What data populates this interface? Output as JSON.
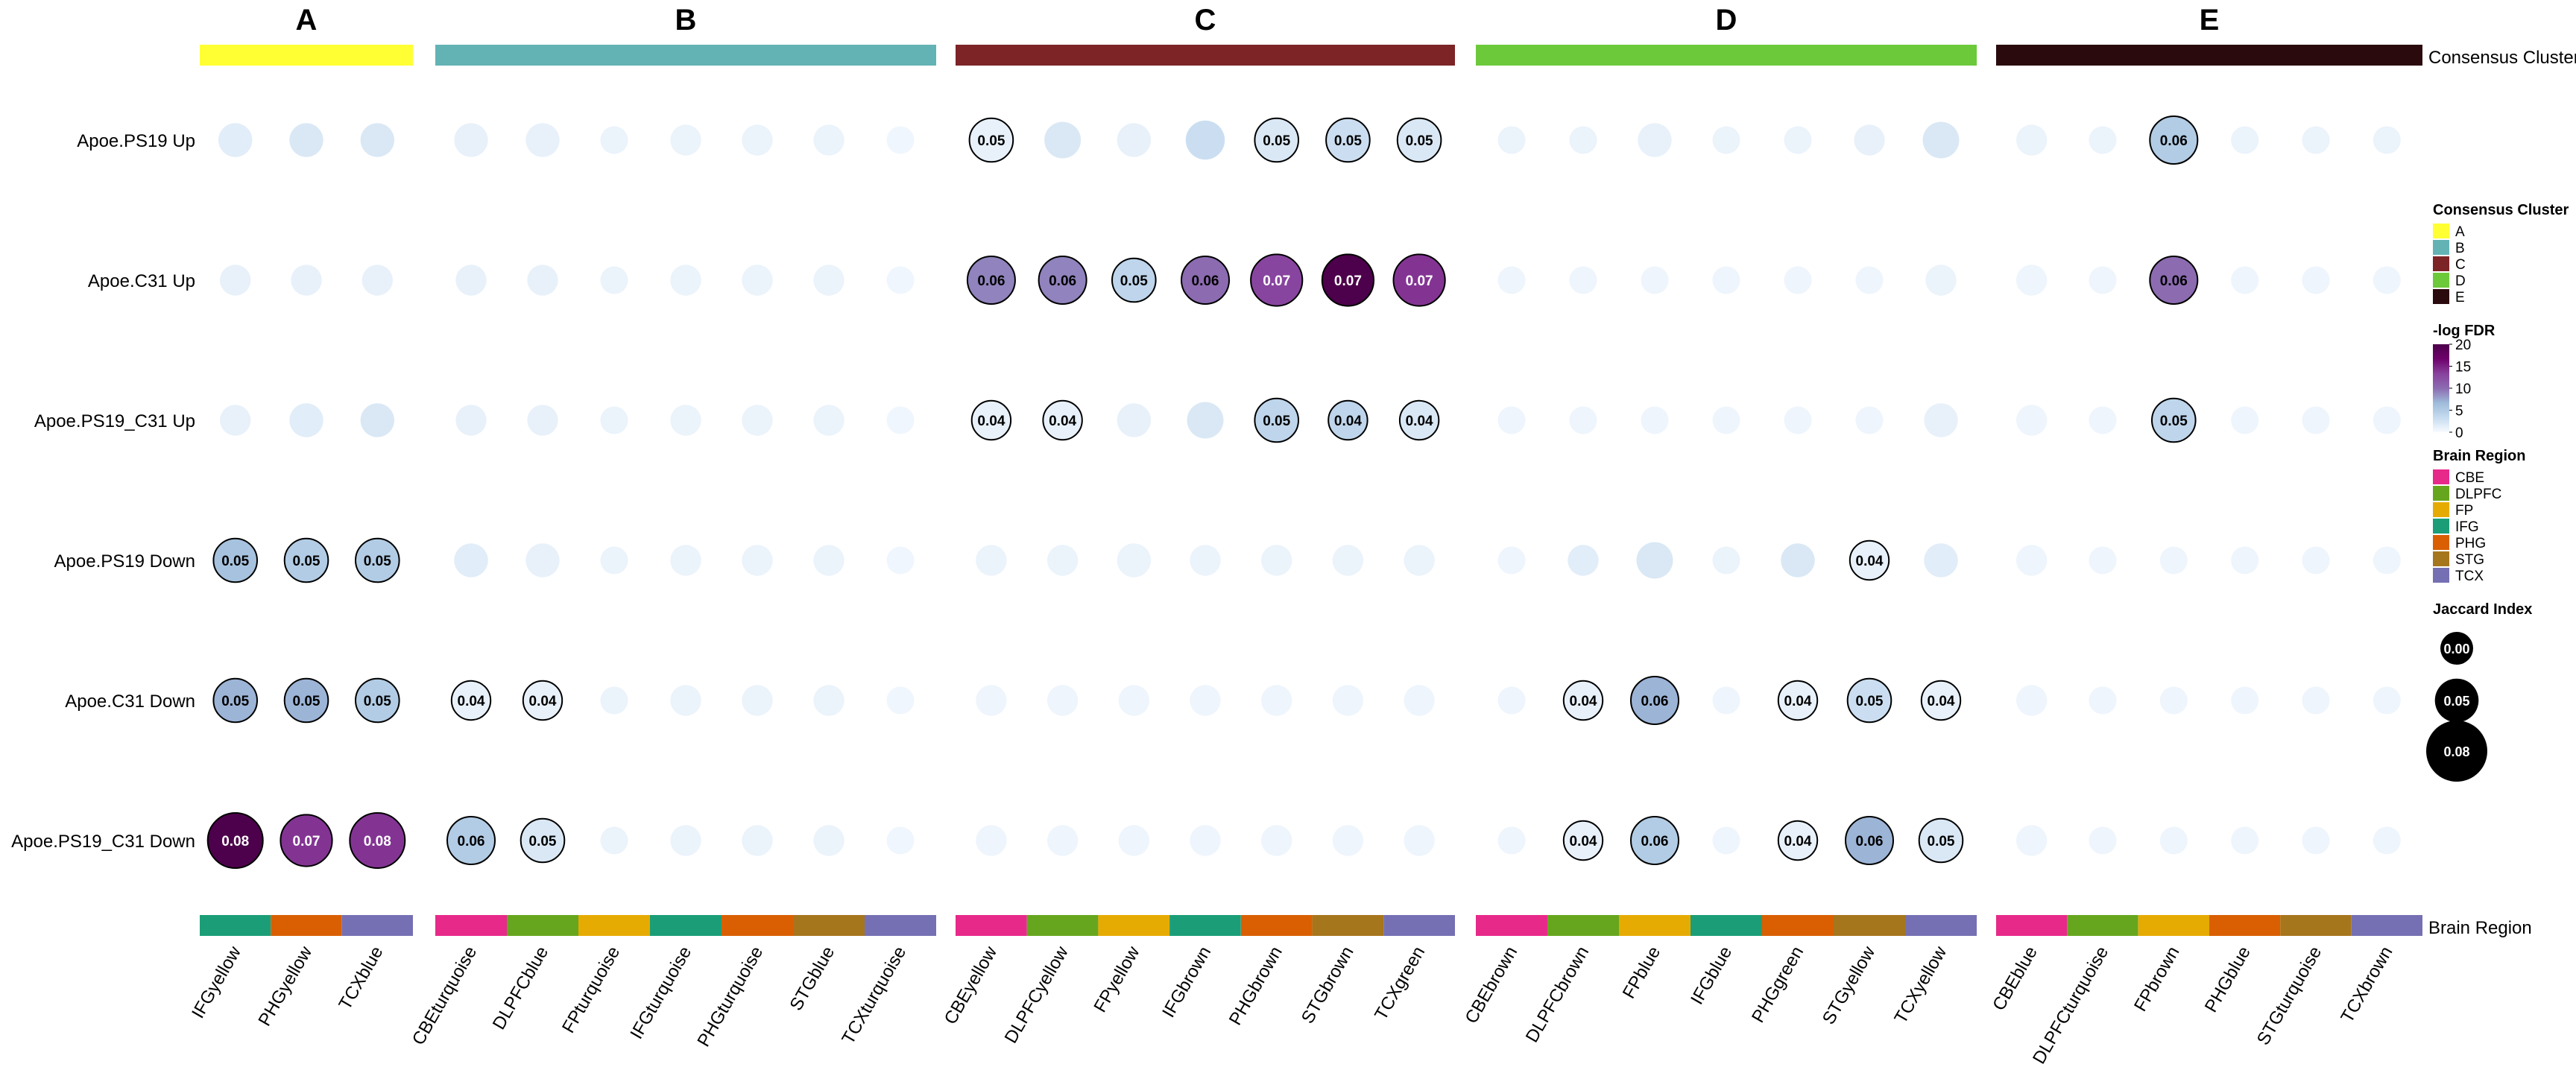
{
  "chart_data": {
    "type": "heatmap",
    "title": "",
    "top_annotation_label": "Consensus Cluster",
    "bottom_annotation_label": "Brain Region",
    "clusters": [
      {
        "name": "A",
        "color": "#FFFF33"
      },
      {
        "name": "B",
        "color": "#63B3B5"
      },
      {
        "name": "C",
        "color": "#7D2427"
      },
      {
        "name": "D",
        "color": "#6CC93A"
      },
      {
        "name": "E",
        "color": "#2B0A0D"
      }
    ],
    "column_groups": [
      [
        "IFGyellow",
        "PHGyellow",
        "TCXblue"
      ],
      [
        "CBEturquoise",
        "DLPFCblue",
        "FPturquoise",
        "IFGturquoise",
        "PHGturquoise",
        "STGblue",
        "TCXturquoise"
      ],
      [
        "CBEyellow",
        "DLPFCyellow",
        "FPyellow",
        "IFGbrown",
        "PHGbrown",
        "STGbrown",
        "TCXgreen"
      ],
      [
        "CBEbrown",
        "DLPFCbrown",
        "FPblue",
        "IFGblue",
        "PHGgreen",
        "STGyellow",
        "TCXyellow"
      ],
      [
        "CBEblue",
        "DLPFCturquoise",
        "FPbrown",
        "PHGblue",
        "STGturquoise",
        "TCXbrown"
      ]
    ],
    "column_regions": [
      [
        "IFG",
        "PHG",
        "TCX"
      ],
      [
        "CBE",
        "DLPFC",
        "FP",
        "IFG",
        "PHG",
        "STG",
        "TCX"
      ],
      [
        "CBE",
        "DLPFC",
        "FP",
        "IFG",
        "PHG",
        "STG",
        "TCX"
      ],
      [
        "CBE",
        "DLPFC",
        "FP",
        "IFG",
        "PHG",
        "STG",
        "TCX"
      ],
      [
        "CBE",
        "DLPFC",
        "FP",
        "PHG",
        "STG",
        "TCX"
      ]
    ],
    "rows": [
      "Apoe.PS19 Up",
      "Apoe.C31 Up",
      "Apoe.PS19_C31 Up",
      "Apoe.PS19 Down",
      "Apoe.C31 Down",
      "Apoe.PS19_C31 Down"
    ],
    "jaccard": [
      [
        0.03,
        0.03,
        0.03,
        0.03,
        0.03,
        0.02,
        0.025,
        0.025,
        0.025,
        0.02,
        0.05,
        0.035,
        0.03,
        0.04,
        0.05,
        0.05,
        0.05,
        0.02,
        0.02,
        0.03,
        0.02,
        0.02,
        0.025,
        0.035,
        0.025,
        0.02,
        0.06,
        0.02,
        0.02,
        0.02
      ],
      [
        0.025,
        0.025,
        0.025,
        0.025,
        0.025,
        0.02,
        0.025,
        0.025,
        0.025,
        0.02,
        0.06,
        0.06,
        0.05,
        0.06,
        0.07,
        0.07,
        0.07,
        0.02,
        0.02,
        0.02,
        0.02,
        0.02,
        0.02,
        0.025,
        0.025,
        0.02,
        0.06,
        0.02,
        0.02,
        0.02
      ],
      [
        0.025,
        0.03,
        0.03,
        0.025,
        0.025,
        0.02,
        0.025,
        0.025,
        0.025,
        0.02,
        0.04,
        0.04,
        0.03,
        0.035,
        0.05,
        0.04,
        0.04,
        0.02,
        0.02,
        0.02,
        0.02,
        0.02,
        0.02,
        0.03,
        0.025,
        0.02,
        0.05,
        0.02,
        0.02,
        0.02
      ],
      [
        0.05,
        0.05,
        0.05,
        0.03,
        0.03,
        0.02,
        0.025,
        0.025,
        0.025,
        0.02,
        0.025,
        0.025,
        0.03,
        0.025,
        0.025,
        0.025,
        0.025,
        0.02,
        0.025,
        0.035,
        0.02,
        0.03,
        0.04,
        0.03,
        0.025,
        0.02,
        0.02,
        0.02,
        0.02,
        0.02
      ],
      [
        0.05,
        0.05,
        0.05,
        0.04,
        0.04,
        0.02,
        0.025,
        0.025,
        0.025,
        0.02,
        0.025,
        0.025,
        0.025,
        0.025,
        0.025,
        0.025,
        0.025,
        0.02,
        0.04,
        0.06,
        0.02,
        0.04,
        0.05,
        0.04,
        0.025,
        0.02,
        0.02,
        0.02,
        0.02,
        0.02
      ],
      [
        0.08,
        0.07,
        0.08,
        0.06,
        0.05,
        0.02,
        0.025,
        0.025,
        0.025,
        0.02,
        0.025,
        0.025,
        0.025,
        0.025,
        0.025,
        0.025,
        0.025,
        0.02,
        0.04,
        0.06,
        0.02,
        0.04,
        0.06,
        0.05,
        0.025,
        0.02,
        0.02,
        0.02,
        0.02,
        0.02
      ]
    ],
    "neglogfdr": [
      [
        1.5,
        2,
        2,
        1,
        1,
        0.8,
        0.8,
        0.8,
        0.8,
        0.5,
        1,
        2,
        1,
        3,
        2,
        3,
        2,
        0.8,
        0.8,
        1,
        0.8,
        0.8,
        1,
        2,
        0.8,
        0.8,
        5,
        0.8,
        0.8,
        0.8
      ],
      [
        1,
        1,
        1,
        1,
        1,
        0.8,
        0.8,
        0.8,
        0.8,
        0.5,
        9,
        9,
        4,
        10,
        13,
        20,
        14,
        0.6,
        0.6,
        0.6,
        0.6,
        0.6,
        0.6,
        0.8,
        0.6,
        0.6,
        10,
        0.6,
        0.6,
        0.6
      ],
      [
        1,
        1.5,
        2,
        1,
        1,
        0.8,
        0.8,
        0.8,
        0.8,
        0.5,
        1,
        1,
        1,
        2,
        4,
        4,
        2,
        0.6,
        0.6,
        0.6,
        0.6,
        0.6,
        0.6,
        1,
        0.6,
        0.6,
        4,
        0.6,
        0.6,
        0.6
      ],
      [
        6,
        5,
        5,
        1.5,
        1,
        0.8,
        0.8,
        0.8,
        0.8,
        0.5,
        0.8,
        0.8,
        0.8,
        0.8,
        0.8,
        0.8,
        0.8,
        0.6,
        1.5,
        2,
        0.8,
        2,
        1,
        1.5,
        0.6,
        0.6,
        0.6,
        0.6,
        0.6,
        0.6
      ],
      [
        7,
        7,
        5,
        1,
        1,
        0.8,
        0.8,
        0.8,
        0.8,
        0.5,
        0.6,
        0.6,
        0.6,
        0.6,
        0.6,
        0.6,
        0.6,
        0.6,
        1,
        7,
        0.6,
        1,
        3,
        1,
        0.6,
        0.6,
        0.6,
        0.6,
        0.6,
        0.6
      ],
      [
        20,
        14,
        14,
        5,
        2,
        0.8,
        0.8,
        0.8,
        0.8,
        0.5,
        0.6,
        0.6,
        0.6,
        0.6,
        0.6,
        0.6,
        0.6,
        0.6,
        1,
        5,
        0.6,
        1,
        7,
        2,
        0.6,
        0.6,
        0.6,
        0.6,
        0.6,
        0.6
      ]
    ],
    "labels": [
      [
        null,
        null,
        null,
        null,
        null,
        null,
        null,
        null,
        null,
        null,
        "0.05",
        null,
        null,
        null,
        "0.05",
        "0.05",
        "0.05",
        null,
        null,
        null,
        null,
        null,
        null,
        null,
        null,
        null,
        "0.06",
        null,
        null,
        null
      ],
      [
        null,
        null,
        null,
        null,
        null,
        null,
        null,
        null,
        null,
        null,
        "0.06",
        "0.06",
        "0.05",
        "0.06",
        "0.07",
        "0.07",
        "0.07",
        null,
        null,
        null,
        null,
        null,
        null,
        null,
        null,
        null,
        "0.06",
        null,
        null,
        null
      ],
      [
        null,
        null,
        null,
        null,
        null,
        null,
        null,
        null,
        null,
        null,
        "0.04",
        "0.04",
        null,
        null,
        "0.05",
        "0.04",
        "0.04",
        null,
        null,
        null,
        null,
        null,
        null,
        null,
        null,
        null,
        "0.05",
        null,
        null,
        null
      ],
      [
        "0.05",
        "0.05",
        "0.05",
        null,
        null,
        null,
        null,
        null,
        null,
        null,
        null,
        null,
        null,
        null,
        null,
        null,
        null,
        null,
        null,
        null,
        null,
        null,
        "0.04",
        null,
        null,
        null,
        null,
        null,
        null,
        null
      ],
      [
        "0.05",
        "0.05",
        "0.05",
        "0.04",
        "0.04",
        null,
        null,
        null,
        null,
        null,
        null,
        null,
        null,
        null,
        null,
        null,
        null,
        null,
        "0.04",
        "0.06",
        null,
        "0.04",
        "0.05",
        "0.04",
        null,
        null,
        null,
        null,
        null,
        null
      ],
      [
        "0.08",
        "0.07",
        "0.08",
        "0.06",
        "0.05",
        null,
        null,
        null,
        null,
        null,
        null,
        null,
        null,
        null,
        null,
        null,
        null,
        null,
        "0.04",
        "0.06",
        null,
        "0.04",
        "0.06",
        "0.05",
        null,
        null,
        null,
        null,
        null,
        null
      ]
    ],
    "legend": {
      "cluster_title": "Consensus Cluster",
      "fdr_title": "-log FDR",
      "fdr_ticks": [
        "20",
        "15",
        "10",
        "5",
        "0"
      ],
      "fdr_range": [
        0,
        20
      ],
      "region_title": "Brain Region",
      "regions": [
        {
          "name": "CBE",
          "color": "#E7298A"
        },
        {
          "name": "DLPFC",
          "color": "#66A61E"
        },
        {
          "name": "FP",
          "color": "#E6AB02"
        },
        {
          "name": "IFG",
          "color": "#1B9E77"
        },
        {
          "name": "PHG",
          "color": "#D95F02"
        },
        {
          "name": "STG",
          "color": "#A6761D"
        },
        {
          "name": "TCX",
          "color": "#7570B3"
        }
      ],
      "jaccard_title": "Jaccard Index",
      "jaccard_ticks": [
        {
          "label": "0.00",
          "value": 0.0
        },
        {
          "label": "0.05",
          "value": 0.05
        },
        {
          "label": "0.08",
          "value": 0.08
        }
      ]
    },
    "color_scale": [
      "#F7FBFF",
      "#C6DBEF",
      "#9EBCDA",
      "#8C6BB1",
      "#88419D",
      "#6E016B",
      "#4D004B"
    ]
  }
}
